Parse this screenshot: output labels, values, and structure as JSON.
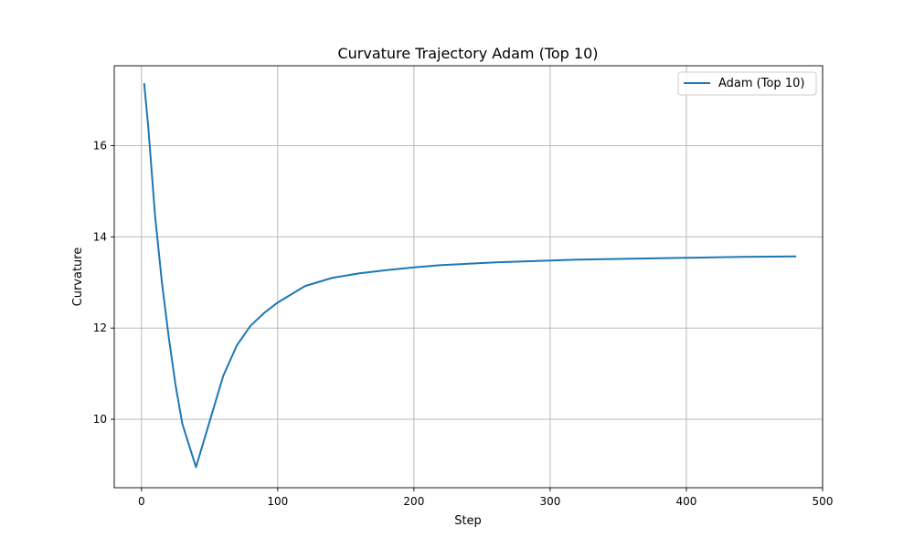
{
  "chart_data": {
    "type": "line",
    "title": "Curvature Trajectory Adam (Top 10)",
    "xlabel": "Step",
    "ylabel": "Curvature",
    "xlim": [
      -20,
      500
    ],
    "ylim": [
      8.5,
      17.75
    ],
    "xticks": [
      0,
      100,
      200,
      300,
      400,
      500
    ],
    "yticks": [
      10,
      12,
      14,
      16
    ],
    "xtick_labels": [
      "0",
      "100",
      "200",
      "300",
      "400",
      "500"
    ],
    "ytick_labels": [
      "10",
      "12",
      "14",
      "16"
    ],
    "grid": true,
    "legend_position": "top-right",
    "series_color": "#1f77b4",
    "series": [
      {
        "name": "Adam (Top 10)",
        "x": [
          2,
          5,
          10,
          15,
          20,
          25,
          30,
          40,
          50,
          60,
          70,
          80,
          90,
          100,
          120,
          140,
          160,
          180,
          200,
          220,
          240,
          260,
          280,
          300,
          320,
          340,
          360,
          380,
          400,
          420,
          440,
          460,
          480
        ],
        "y": [
          17.35,
          16.4,
          14.45,
          13.0,
          11.8,
          10.75,
          9.9,
          8.95,
          9.95,
          10.95,
          11.62,
          12.05,
          12.33,
          12.56,
          12.92,
          13.1,
          13.2,
          13.27,
          13.33,
          13.38,
          13.41,
          13.44,
          13.46,
          13.48,
          13.5,
          13.51,
          13.52,
          13.53,
          13.54,
          13.55,
          13.56,
          13.565,
          13.57
        ]
      }
    ]
  }
}
